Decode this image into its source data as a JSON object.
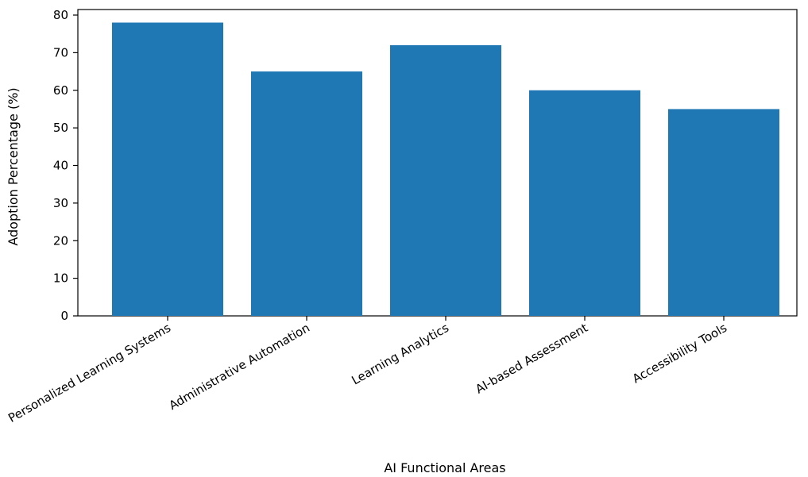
{
  "chart_data": {
    "type": "bar",
    "categories": [
      "Personalized Learning Systems",
      "Administrative Automation",
      "Learning Analytics",
      "AI-based Assessment",
      "Accessibility Tools"
    ],
    "values": [
      78,
      65,
      72,
      60,
      55
    ],
    "xlabel": "AI Functional Areas",
    "ylabel": "Adoption Percentage (%)",
    "ylim": [
      0,
      80
    ],
    "yticks": [
      0,
      10,
      20,
      30,
      40,
      50,
      60,
      70,
      80
    ],
    "grid": false,
    "bar_color": "#1f77b4"
  }
}
